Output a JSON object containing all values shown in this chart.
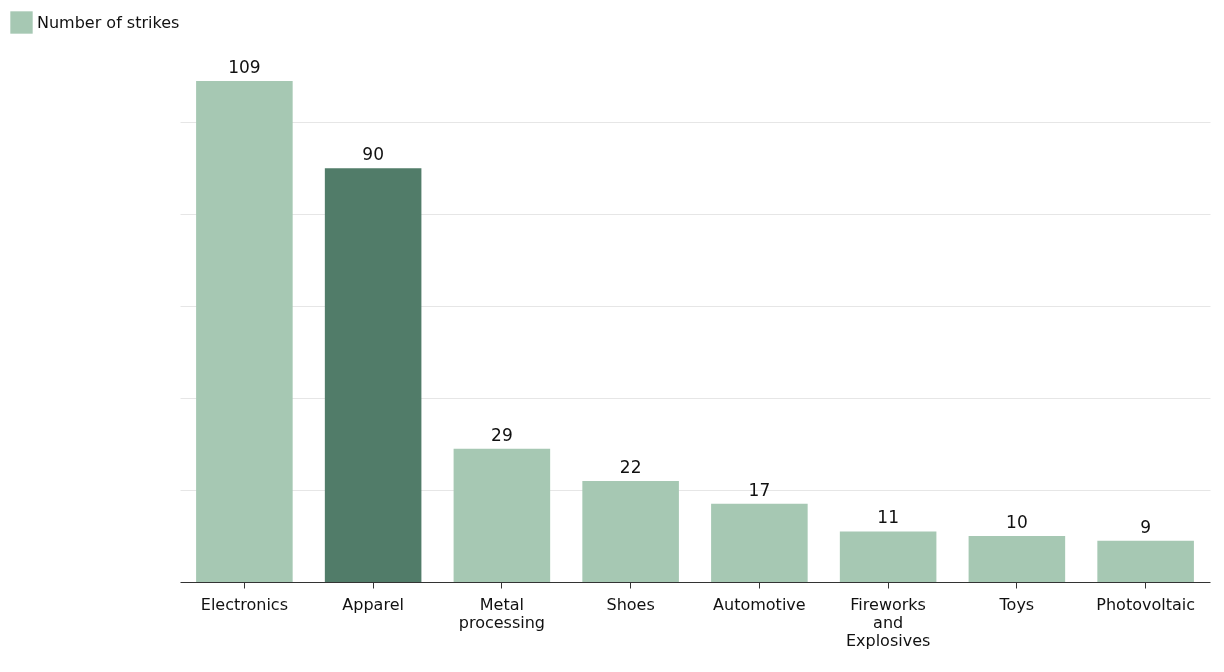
{
  "chart_data": {
    "type": "bar",
    "categories": [
      "Electronics",
      "Apparel",
      "Metal processing",
      "Shoes",
      "Automotive",
      "Fireworks and Explosives",
      "Toys",
      "Photovoltaic"
    ],
    "series": [
      {
        "name": "Number of strikes",
        "color": "#a6c8b3",
        "colors": [
          "#a6c8b3",
          "#517c69",
          "#a6c8b3",
          "#a6c8b3",
          "#a6c8b3",
          "#a6c8b3",
          "#a6c8b3",
          "#a6c8b3"
        ],
        "values": [
          109,
          90,
          29,
          22,
          17,
          11,
          10,
          9
        ]
      }
    ],
    "yticks": [
      20,
      40,
      60,
      80,
      100
    ],
    "grid": "y",
    "tick_labels": "x",
    "data_labels": true,
    "legend": "top left"
  }
}
